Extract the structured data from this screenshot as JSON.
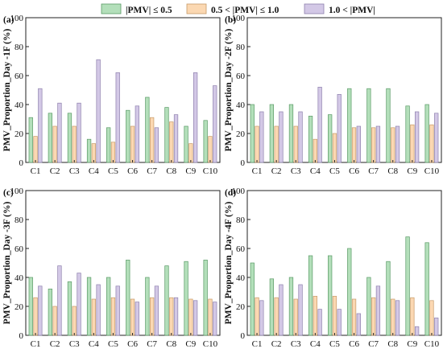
{
  "legend": {
    "entries": [
      "|PMV| ≤ 0.5",
      "0.5 < |PMV| ≤ 1.0",
      "1.0 < |PMV|"
    ],
    "placement": "top-center"
  },
  "colors": {
    "low": "#b3dfba",
    "low_stroke": "#5a9a66",
    "mid": "#fbd8b2",
    "mid_stroke": "#c79a68",
    "high": "#d3c8e6",
    "high_stroke": "#8e80ad",
    "axis": "#222222"
  },
  "chart_data": [
    {
      "type": "bar",
      "panel_label": "(a)",
      "ylabel": "PMV_Proportion_Day -1F (%)",
      "categories": [
        "C1",
        "C2",
        "C3",
        "C4",
        "C5",
        "C6",
        "C7",
        "C8",
        "C9",
        "C10"
      ],
      "ylim": [
        0,
        100
      ],
      "yticks": [
        0,
        20,
        40,
        60,
        80,
        100
      ],
      "series": [
        {
          "name": "|PMV| ≤ 0.5",
          "values": [
            31,
            34,
            34,
            16,
            24,
            36,
            45,
            38,
            25,
            29
          ]
        },
        {
          "name": "0.5 < |PMV| ≤ 1.0",
          "values": [
            18,
            25,
            25,
            13,
            14,
            25,
            31,
            28,
            13,
            18
          ]
        },
        {
          "name": "1.0 < |PMV|",
          "values": [
            51,
            41,
            41,
            71,
            62,
            39,
            24,
            33,
            62,
            53
          ]
        }
      ]
    },
    {
      "type": "bar",
      "panel_label": "(b)",
      "ylabel": "PMV_Proportion_Day -2F (%)",
      "categories": [
        "C1",
        "C2",
        "C3",
        "C4",
        "C5",
        "C6",
        "C7",
        "C8",
        "C9",
        "C10"
      ],
      "ylim": [
        0,
        100
      ],
      "yticks": [
        0,
        20,
        40,
        60,
        80,
        100
      ],
      "series": [
        {
          "name": "|PMV| ≤ 0.5",
          "values": [
            40,
            40,
            40,
            32,
            33,
            51,
            51,
            51,
            39,
            40
          ]
        },
        {
          "name": "0.5 < |PMV| ≤ 1.0",
          "values": [
            25,
            25,
            25,
            16,
            20,
            24,
            24,
            24,
            26,
            26
          ]
        },
        {
          "name": "1.0 < |PMV|",
          "values": [
            35,
            35,
            35,
            52,
            47,
            25,
            25,
            25,
            35,
            34
          ]
        }
      ]
    },
    {
      "type": "bar",
      "panel_label": "(c)",
      "ylabel": "PMV_Proportion_Day -3F (%)",
      "categories": [
        "C1",
        "C2",
        "C3",
        "C4",
        "C5",
        "C6",
        "C7",
        "C8",
        "C9",
        "C10"
      ],
      "ylim": [
        0,
        100
      ],
      "yticks": [
        0,
        20,
        40,
        60,
        80,
        100
      ],
      "series": [
        {
          "name": "|PMV| ≤ 0.5",
          "values": [
            40,
            32,
            37,
            40,
            40,
            52,
            40,
            48,
            51,
            52
          ]
        },
        {
          "name": "0.5 < |PMV| ≤ 1.0",
          "values": [
            26,
            20,
            20,
            25,
            26,
            25,
            26,
            26,
            25,
            25
          ]
        },
        {
          "name": "1.0 < |PMV|",
          "values": [
            34,
            48,
            43,
            35,
            34,
            23,
            34,
            26,
            24,
            23
          ]
        }
      ]
    },
    {
      "type": "bar",
      "panel_label": "(d)",
      "ylabel": "PMV_Proportion_Day -4F (%)",
      "categories": [
        "C1",
        "C2",
        "C3",
        "C4",
        "C5",
        "C6",
        "C7",
        "C8",
        "C9",
        "C10"
      ],
      "ylim": [
        0,
        100
      ],
      "yticks": [
        0,
        20,
        40,
        60,
        80,
        100
      ],
      "series": [
        {
          "name": "|PMV| ≤ 0.5",
          "values": [
            50,
            39,
            40,
            55,
            55,
            60,
            40,
            51,
            68,
            64
          ]
        },
        {
          "name": "0.5 < |PMV| ≤ 1.0",
          "values": [
            26,
            26,
            25,
            27,
            27,
            25,
            26,
            25,
            26,
            24
          ]
        },
        {
          "name": "1.0 < |PMV|",
          "values": [
            24,
            35,
            35,
            18,
            18,
            15,
            34,
            24,
            6,
            12
          ]
        }
      ]
    }
  ]
}
